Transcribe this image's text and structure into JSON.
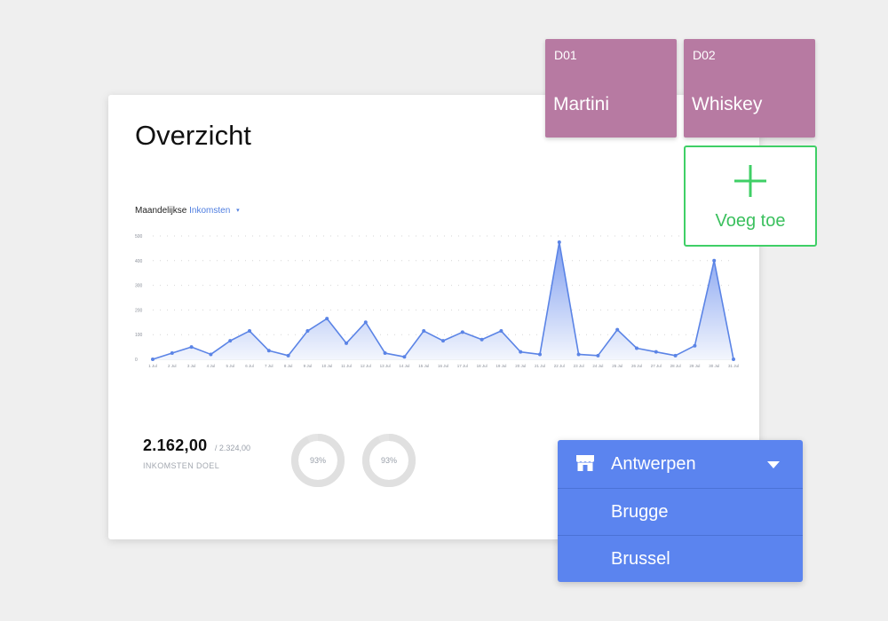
{
  "overview": {
    "title": "Overzicht",
    "selector_prefix": "Maandelijkse",
    "selector_metric": "Inkomsten",
    "selector_caret": "▾"
  },
  "chart_data": {
    "type": "area",
    "x": [
      "1 Jul",
      "2 Jul",
      "3 Jul",
      "4 Jul",
      "5 Jul",
      "6 Jul",
      "7 Jul",
      "8 Jul",
      "9 Jul",
      "10 Jul",
      "11 Jul",
      "12 Jul",
      "13 Jul",
      "14 Jul",
      "15 Jul",
      "16 Jul",
      "17 Jul",
      "18 Jul",
      "19 Jul",
      "20 Jul",
      "21 Jul",
      "22 Jul",
      "23 Jul",
      "24 Jul",
      "25 Jul",
      "26 Jul",
      "27 Jul",
      "28 Jul",
      "29 Jul",
      "30 Jul",
      "31 Jul"
    ],
    "values": [
      0,
      25,
      50,
      20,
      75,
      115,
      35,
      15,
      115,
      165,
      65,
      150,
      25,
      10,
      115,
      75,
      110,
      80,
      115,
      30,
      20,
      475,
      20,
      15,
      120,
      45,
      30,
      15,
      55,
      400,
      0
    ],
    "yticks": [
      0,
      100,
      200,
      300,
      400,
      500
    ],
    "ylim": [
      0,
      500
    ],
    "grid": true,
    "line_color": "#5b84e6",
    "fill_top": "#7f9ef0",
    "fill_bottom": "#f3f6fd"
  },
  "stats": {
    "value": "2.162,00",
    "total": "/ 2.324,00",
    "label": "INKOMSTEN DOEL"
  },
  "donuts": [
    {
      "label": "93%",
      "fraction": 0.93
    },
    {
      "label": "93%",
      "fraction": 0.93
    }
  ],
  "tiles": [
    {
      "code": "D01",
      "name": "Martini"
    },
    {
      "code": "D02",
      "name": "Whiskey"
    }
  ],
  "add_tile": {
    "label": "Voeg toe"
  },
  "location_dropdown": {
    "selected": "Antwerpen",
    "icon": "store-icon",
    "options": [
      "Brugge",
      "Brussel"
    ]
  },
  "colors": {
    "tile": "#b77aa2",
    "add_green": "#3fcf66",
    "dropdown": "#5b84ef",
    "accent": "#4f7ee0"
  }
}
